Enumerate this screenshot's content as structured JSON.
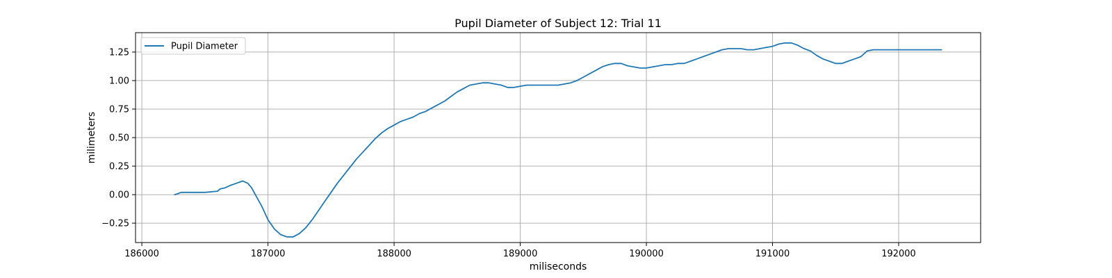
{
  "chart_data": {
    "type": "line",
    "title": "Pupil Diameter of Subject 12: Trial 11",
    "xlabel": "miliseconds",
    "ylabel": "milimeters",
    "xlim": [
      185950,
      192650
    ],
    "ylim": [
      -0.42,
      1.42
    ],
    "xticks": [
      186000,
      187000,
      188000,
      189000,
      190000,
      191000,
      192000
    ],
    "yticks": [
      -0.25,
      0.0,
      0.25,
      0.5,
      0.75,
      1.0,
      1.25
    ],
    "ytick_labels": [
      "−0.25",
      "0.00",
      "0.25",
      "0.50",
      "0.75",
      "1.00",
      "1.25"
    ],
    "grid": true,
    "legend_position": "top-left",
    "series": [
      {
        "name": "Pupil Diameter",
        "color": "#1f77b4",
        "x": [
          186260,
          186290,
          186310,
          186400,
          186500,
          186600,
          186620,
          186660,
          186700,
          186750,
          186800,
          186840,
          186870,
          186900,
          186950,
          187000,
          187050,
          187100,
          187150,
          187200,
          187250,
          187300,
          187350,
          187400,
          187450,
          187500,
          187550,
          187600,
          187650,
          187700,
          187750,
          187800,
          187850,
          187900,
          187950,
          188000,
          188050,
          188100,
          188150,
          188200,
          188250,
          188300,
          188350,
          188400,
          188450,
          188500,
          188550,
          188600,
          188650,
          188700,
          188750,
          188800,
          188850,
          188900,
          188950,
          189000,
          189050,
          189100,
          189150,
          189200,
          189250,
          189300,
          189350,
          189400,
          189450,
          189500,
          189550,
          189600,
          189650,
          189700,
          189750,
          189800,
          189850,
          189900,
          189950,
          190000,
          190050,
          190100,
          190150,
          190200,
          190250,
          190300,
          190350,
          190400,
          190450,
          190500,
          190550,
          190600,
          190650,
          190700,
          190750,
          190800,
          190850,
          190900,
          190950,
          191000,
          191050,
          191100,
          191150,
          191200,
          191250,
          191300,
          191350,
          191400,
          191450,
          191500,
          191550,
          191600,
          191650,
          191700,
          191750,
          191800,
          191850,
          191900,
          191950,
          192000,
          192050,
          192100,
          192150,
          192180,
          192200,
          192220,
          192250,
          192300,
          192340
        ],
        "y": [
          0.0,
          0.01,
          0.02,
          0.02,
          0.02,
          0.03,
          0.05,
          0.06,
          0.08,
          0.1,
          0.12,
          0.1,
          0.06,
          0.0,
          -0.1,
          -0.22,
          -0.3,
          -0.35,
          -0.37,
          -0.37,
          -0.34,
          -0.29,
          -0.22,
          -0.14,
          -0.06,
          0.02,
          0.1,
          0.17,
          0.24,
          0.31,
          0.37,
          0.43,
          0.49,
          0.54,
          0.58,
          0.61,
          0.64,
          0.66,
          0.68,
          0.71,
          0.73,
          0.76,
          0.79,
          0.82,
          0.86,
          0.9,
          0.93,
          0.96,
          0.97,
          0.98,
          0.98,
          0.97,
          0.96,
          0.94,
          0.94,
          0.95,
          0.96,
          0.96,
          0.96,
          0.96,
          0.96,
          0.96,
          0.97,
          0.98,
          1.0,
          1.03,
          1.06,
          1.09,
          1.12,
          1.14,
          1.15,
          1.15,
          1.13,
          1.12,
          1.11,
          1.11,
          1.12,
          1.13,
          1.14,
          1.14,
          1.15,
          1.15,
          1.17,
          1.19,
          1.21,
          1.23,
          1.25,
          1.27,
          1.28,
          1.28,
          1.28,
          1.27,
          1.27,
          1.28,
          1.29,
          1.3,
          1.32,
          1.33,
          1.33,
          1.31,
          1.28,
          1.26,
          1.22,
          1.19,
          1.17,
          1.15,
          1.15,
          1.17,
          1.19,
          1.21,
          1.26,
          1.27,
          1.27,
          1.27,
          1.27,
          1.27,
          1.27,
          1.27,
          1.27,
          1.27,
          1.27,
          1.27,
          1.27,
          1.27,
          1.27
        ]
      }
    ]
  }
}
